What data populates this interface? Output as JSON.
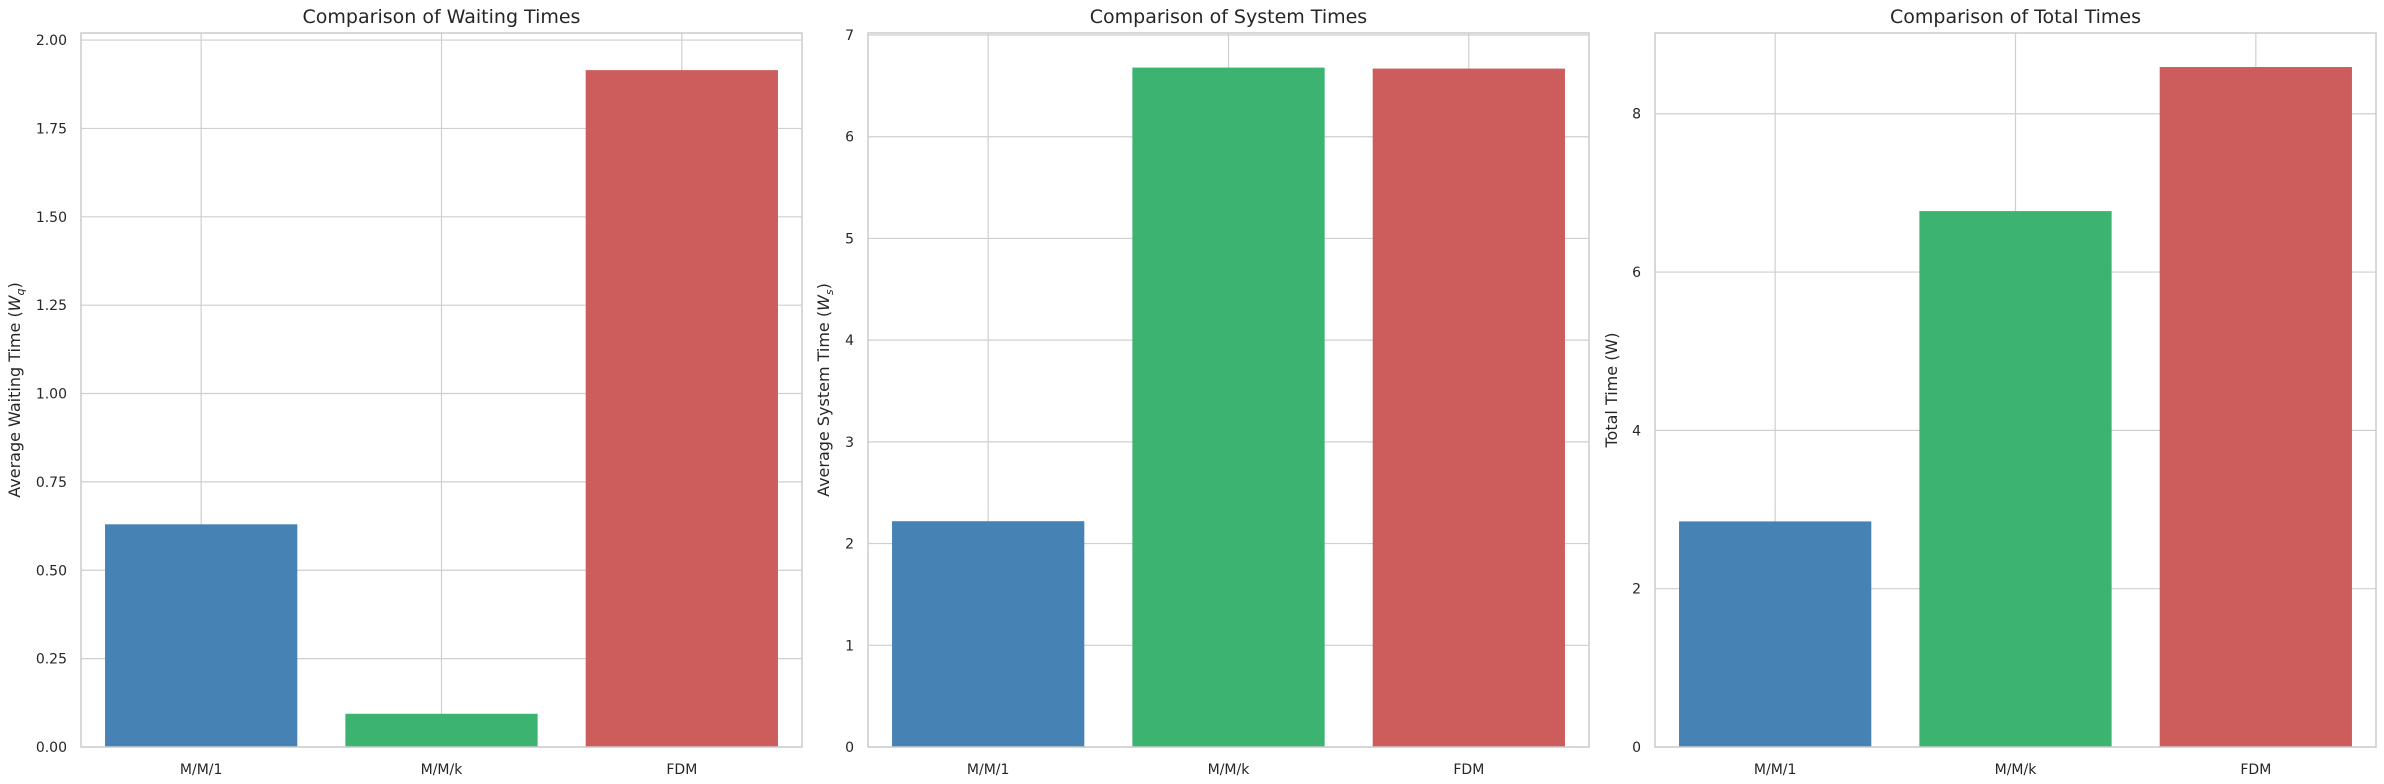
{
  "chart_data": [
    {
      "type": "bar",
      "title": "Comparison of Waiting Times",
      "xlabel": "",
      "ylabel_parts": [
        "Average Waiting Time (",
        "W",
        "q",
        ")"
      ],
      "categories": [
        "M/M/1",
        "M/M/k",
        "FDM"
      ],
      "values": [
        0.63,
        0.094,
        1.915
      ],
      "colors": [
        "#4682b4",
        "#3cb371",
        "#cd5c5c"
      ],
      "ylim": [
        0,
        2.02
      ],
      "yticks": [
        0.0,
        0.25,
        0.5,
        0.75,
        1.0,
        1.25,
        1.5,
        1.75,
        2.0
      ],
      "ytick_labels": [
        "0.00",
        "0.25",
        "0.50",
        "0.75",
        "1.00",
        "1.25",
        "1.50",
        "1.75",
        "2.00"
      ],
      "grid": true
    },
    {
      "type": "bar",
      "title": "Comparison of System Times",
      "xlabel": "",
      "ylabel_parts": [
        "Average System Time (",
        "W",
        "s",
        ")"
      ],
      "categories": [
        "M/M/1",
        "M/M/k",
        "FDM"
      ],
      "values": [
        2.22,
        6.68,
        6.67
      ],
      "colors": [
        "#4682b4",
        "#3cb371",
        "#cd5c5c"
      ],
      "ylim": [
        0,
        7.02
      ],
      "yticks": [
        0,
        1,
        2,
        3,
        4,
        5,
        6,
        7
      ],
      "ytick_labels": [
        "0",
        "1",
        "2",
        "3",
        "4",
        "5",
        "6",
        "7"
      ],
      "grid": true
    },
    {
      "type": "bar",
      "title": "Comparison of Total Times",
      "xlabel": "",
      "ylabel_parts": [
        "Total Time (W)"
      ],
      "categories": [
        "M/M/1",
        "M/M/k",
        "FDM"
      ],
      "values": [
        2.85,
        6.77,
        8.59
      ],
      "colors": [
        "#4682b4",
        "#3cb371",
        "#cd5c5c"
      ],
      "ylim": [
        0,
        9.02
      ],
      "yticks": [
        0,
        2,
        4,
        6,
        8
      ],
      "ytick_labels": [
        "0",
        "2",
        "4",
        "6",
        "8"
      ],
      "grid": true
    }
  ]
}
